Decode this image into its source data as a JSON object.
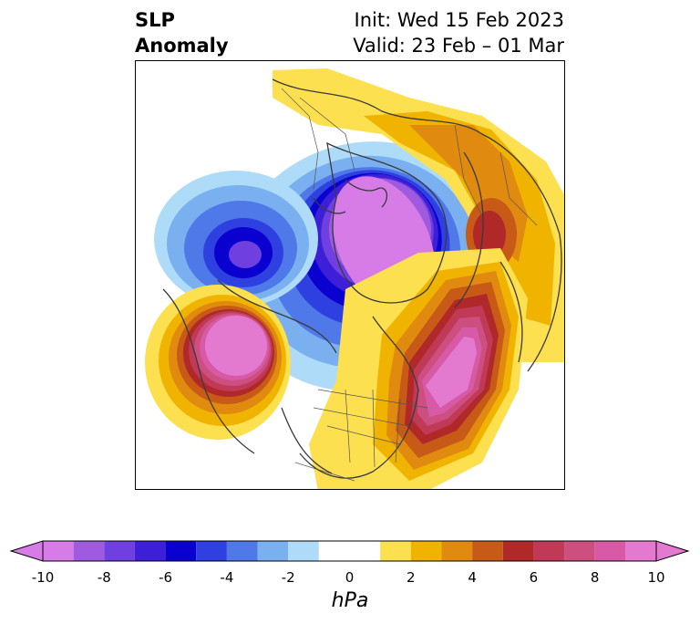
{
  "title": {
    "left_line1": "SLP",
    "left_line2": "Anomaly",
    "right_line1": "Init: Wed 15 Feb 2023",
    "right_line2": "Valid: 23 Feb – 01 Mar"
  },
  "colorbar": {
    "unit": "hPa",
    "min": -10,
    "max": 10,
    "ticks": [
      "-10",
      "-8",
      "-6",
      "-4",
      "-2",
      "0",
      "2",
      "4",
      "6",
      "8",
      "10"
    ],
    "tick_values": [
      -10,
      -8,
      -6,
      -4,
      -2,
      0,
      2,
      4,
      6,
      8,
      10
    ],
    "levels": [
      -10,
      -9,
      -8,
      -7,
      -6,
      -5,
      -4,
      -3,
      -2,
      -1,
      1,
      2,
      3,
      4,
      5,
      6,
      7,
      8,
      9,
      10
    ],
    "colors": [
      "#d77be6",
      "#a05ae0",
      "#6f3fe0",
      "#3e1fd8",
      "#0a00d0",
      "#2e40e0",
      "#4f78e8",
      "#7ab0f0",
      "#aedcf8",
      "#ffffff",
      "#fce050",
      "#f0b400",
      "#e08a10",
      "#c85a18",
      "#b02828",
      "#c03a58",
      "#cc4f80",
      "#d85aa6",
      "#e47ad0"
    ],
    "extend": "both"
  },
  "map": {
    "projection": "north-polar-stereographic",
    "features": [
      "coastlines",
      "country-borders",
      "us-state-borders"
    ],
    "anomalies": [
      {
        "region": "Arctic / northern Siberia",
        "sign": "negative",
        "peak": -10
      },
      {
        "region": "North Atlantic",
        "sign": "negative",
        "peak": -7
      },
      {
        "region": "North Pacific / Gulf of Alaska",
        "sign": "positive",
        "peak": 10
      },
      {
        "region": "North Pacific west / East Asia",
        "sign": "positive",
        "peak": 6
      },
      {
        "region": "Eastern Canada / Hudson Bay",
        "sign": "positive",
        "peak": 10
      }
    ]
  }
}
